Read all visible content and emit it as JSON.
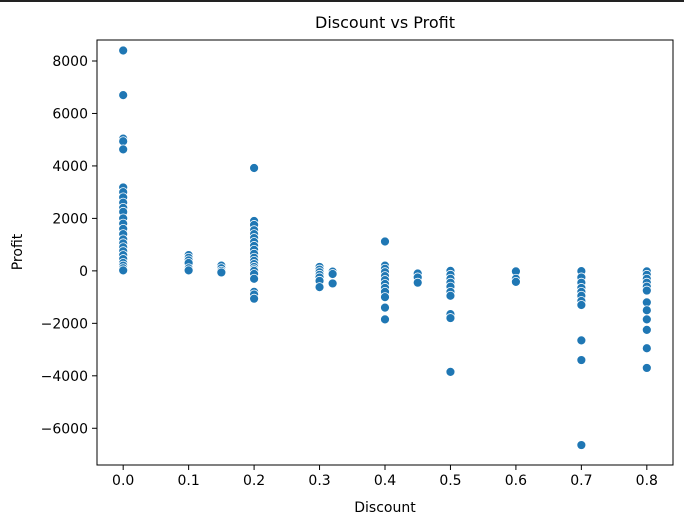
{
  "chart_data": {
    "type": "scatter",
    "title": "Discount vs Profit",
    "xlabel": "Discount",
    "ylabel": "Profit",
    "xlim": [
      -0.04,
      0.84
    ],
    "ylim": [
      -7400,
      8800
    ],
    "xticks": [
      0.0,
      0.1,
      0.2,
      0.3,
      0.4,
      0.5,
      0.6,
      0.7,
      0.8
    ],
    "xtick_labels": [
      "0.0",
      "0.1",
      "0.2",
      "0.3",
      "0.4",
      "0.5",
      "0.6",
      "0.7",
      "0.8"
    ],
    "yticks": [
      -6000,
      -4000,
      -2000,
      0,
      2000,
      4000,
      6000,
      8000
    ],
    "ytick_labels": [
      "−6000",
      "−4000",
      "−2000",
      "0",
      "2000",
      "4000",
      "6000",
      "8000"
    ],
    "grid": false,
    "legend": "none",
    "marker_color": "#1f77b4",
    "series": [
      {
        "points": [
          {
            "x": 0.0,
            "y": 8400
          },
          {
            "x": 0.0,
            "y": 6700
          },
          {
            "x": 0.0,
            "y": 5040
          },
          {
            "x": 0.0,
            "y": 4940
          },
          {
            "x": 0.0,
            "y": 4630
          },
          {
            "x": 0.0,
            "y": 3180
          },
          {
            "x": 0.0,
            "y": 3000
          },
          {
            "x": 0.0,
            "y": 2800
          },
          {
            "x": 0.0,
            "y": 2600
          },
          {
            "x": 0.0,
            "y": 2400
          },
          {
            "x": 0.0,
            "y": 2250
          },
          {
            "x": 0.0,
            "y": 2000
          },
          {
            "x": 0.0,
            "y": 1800
          },
          {
            "x": 0.0,
            "y": 1600
          },
          {
            "x": 0.0,
            "y": 1400
          },
          {
            "x": 0.0,
            "y": 1200
          },
          {
            "x": 0.0,
            "y": 1050
          },
          {
            "x": 0.0,
            "y": 900
          },
          {
            "x": 0.0,
            "y": 750
          },
          {
            "x": 0.0,
            "y": 600
          },
          {
            "x": 0.0,
            "y": 450
          },
          {
            "x": 0.0,
            "y": 300
          },
          {
            "x": 0.0,
            "y": 200
          },
          {
            "x": 0.0,
            "y": 100
          },
          {
            "x": 0.0,
            "y": 20
          },
          {
            "x": 0.1,
            "y": 600
          },
          {
            "x": 0.1,
            "y": 500
          },
          {
            "x": 0.1,
            "y": 400
          },
          {
            "x": 0.1,
            "y": 300
          },
          {
            "x": 0.1,
            "y": 100
          },
          {
            "x": 0.1,
            "y": 20
          },
          {
            "x": 0.15,
            "y": 200
          },
          {
            "x": 0.15,
            "y": 100
          },
          {
            "x": 0.15,
            "y": 0
          },
          {
            "x": 0.15,
            "y": -60
          },
          {
            "x": 0.2,
            "y": 3920
          },
          {
            "x": 0.2,
            "y": 1900
          },
          {
            "x": 0.2,
            "y": 1750
          },
          {
            "x": 0.2,
            "y": 1550
          },
          {
            "x": 0.2,
            "y": 1400
          },
          {
            "x": 0.2,
            "y": 1250
          },
          {
            "x": 0.2,
            "y": 1100
          },
          {
            "x": 0.2,
            "y": 950
          },
          {
            "x": 0.2,
            "y": 800
          },
          {
            "x": 0.2,
            "y": 650
          },
          {
            "x": 0.2,
            "y": 500
          },
          {
            "x": 0.2,
            "y": 380
          },
          {
            "x": 0.2,
            "y": 260
          },
          {
            "x": 0.2,
            "y": 150
          },
          {
            "x": 0.2,
            "y": 60
          },
          {
            "x": 0.2,
            "y": 0
          },
          {
            "x": 0.2,
            "y": -120
          },
          {
            "x": 0.2,
            "y": -300
          },
          {
            "x": 0.2,
            "y": -800
          },
          {
            "x": 0.2,
            "y": -900
          },
          {
            "x": 0.2,
            "y": -1060
          },
          {
            "x": 0.3,
            "y": 150
          },
          {
            "x": 0.3,
            "y": 50
          },
          {
            "x": 0.3,
            "y": -50
          },
          {
            "x": 0.3,
            "y": -150
          },
          {
            "x": 0.3,
            "y": -250
          },
          {
            "x": 0.3,
            "y": -380
          },
          {
            "x": 0.3,
            "y": -620
          },
          {
            "x": 0.32,
            "y": -30
          },
          {
            "x": 0.32,
            "y": -120
          },
          {
            "x": 0.32,
            "y": -480
          },
          {
            "x": 0.4,
            "y": 1120
          },
          {
            "x": 0.4,
            "y": 200
          },
          {
            "x": 0.4,
            "y": 80
          },
          {
            "x": 0.4,
            "y": -50
          },
          {
            "x": 0.4,
            "y": -200
          },
          {
            "x": 0.4,
            "y": -350
          },
          {
            "x": 0.4,
            "y": -500
          },
          {
            "x": 0.4,
            "y": -650
          },
          {
            "x": 0.4,
            "y": -800
          },
          {
            "x": 0.4,
            "y": -1000
          },
          {
            "x": 0.4,
            "y": -1400
          },
          {
            "x": 0.4,
            "y": -1850
          },
          {
            "x": 0.45,
            "y": -100
          },
          {
            "x": 0.45,
            "y": -250
          },
          {
            "x": 0.45,
            "y": -450
          },
          {
            "x": 0.5,
            "y": 0
          },
          {
            "x": 0.5,
            "y": -150
          },
          {
            "x": 0.5,
            "y": -300
          },
          {
            "x": 0.5,
            "y": -450
          },
          {
            "x": 0.5,
            "y": -600
          },
          {
            "x": 0.5,
            "y": -800
          },
          {
            "x": 0.5,
            "y": -950
          },
          {
            "x": 0.5,
            "y": -1650
          },
          {
            "x": 0.5,
            "y": -1800
          },
          {
            "x": 0.5,
            "y": -3850
          },
          {
            "x": 0.6,
            "y": -20
          },
          {
            "x": 0.6,
            "y": -300
          },
          {
            "x": 0.6,
            "y": -420
          },
          {
            "x": 0.7,
            "y": -10
          },
          {
            "x": 0.7,
            "y": -250
          },
          {
            "x": 0.7,
            "y": -450
          },
          {
            "x": 0.7,
            "y": -650
          },
          {
            "x": 0.7,
            "y": -800
          },
          {
            "x": 0.7,
            "y": -950
          },
          {
            "x": 0.7,
            "y": -1150
          },
          {
            "x": 0.7,
            "y": -1300
          },
          {
            "x": 0.7,
            "y": -2650
          },
          {
            "x": 0.7,
            "y": -3400
          },
          {
            "x": 0.7,
            "y": -6640
          },
          {
            "x": 0.8,
            "y": -20
          },
          {
            "x": 0.8,
            "y": -150
          },
          {
            "x": 0.8,
            "y": -300
          },
          {
            "x": 0.8,
            "y": -450
          },
          {
            "x": 0.8,
            "y": -600
          },
          {
            "x": 0.8,
            "y": -750
          },
          {
            "x": 0.8,
            "y": -1200
          },
          {
            "x": 0.8,
            "y": -1500
          },
          {
            "x": 0.8,
            "y": -1850
          },
          {
            "x": 0.8,
            "y": -2250
          },
          {
            "x": 0.8,
            "y": -2950
          },
          {
            "x": 0.8,
            "y": -3700
          }
        ]
      }
    ]
  }
}
